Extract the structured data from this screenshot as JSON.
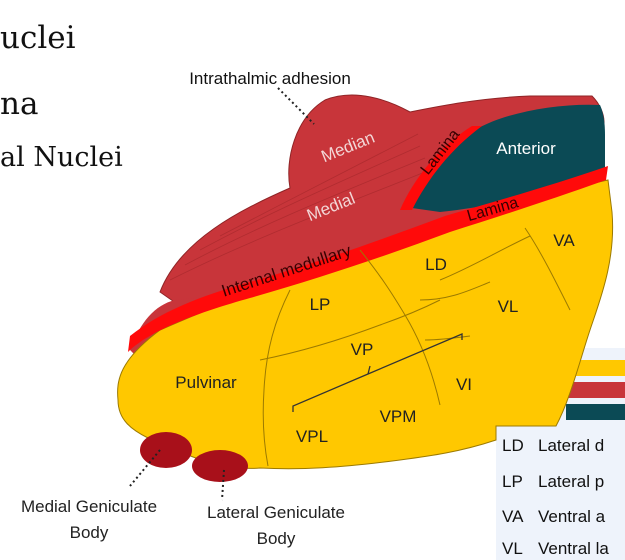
{
  "side_text": [
    "uclei",
    "na",
    "al Nuclei"
  ],
  "labels": {
    "intrathalamic_adhesion": "Intrathalmic adhesion",
    "median": "Median",
    "medial": "Medial",
    "lamina_upper": "Lamina",
    "lamina_lower": "Lamina",
    "anterior": "Anterior",
    "internal_medullary": "Internal medullary",
    "ld": "LD",
    "va": "VA",
    "lp": "LP",
    "vl": "VL",
    "vp": "VP",
    "pulvinar": "Pulvinar",
    "vi": "VI",
    "vpm": "VPM",
    "vpl": "VPL",
    "medial_geniculate_1": "Medial Geniculate",
    "medial_geniculate_2": "Body",
    "lateral_geniculate_1": "Lateral Geniculate",
    "lateral_geniculate_2": "Body"
  },
  "legend": {
    "swatches": [
      {
        "color": "#FFC800"
      },
      {
        "color": "#C8353A"
      },
      {
        "color": "#0B4A55"
      }
    ],
    "rows": [
      {
        "abbr": "LD",
        "text": "Lateral d"
      },
      {
        "abbr": "LP",
        "text": "Lateral p"
      },
      {
        "abbr": "VA",
        "text": "Ventral a"
      },
      {
        "abbr": "VL",
        "text": "Ventral la"
      }
    ]
  },
  "colors": {
    "yellow": "#FFC800",
    "red_medial": "#C8353A",
    "lamina_red": "#FF0A0A",
    "anterior_teal": "#0B4A55",
    "geniculate": "#A8101A",
    "legend_bg": "#EEF3FB"
  }
}
